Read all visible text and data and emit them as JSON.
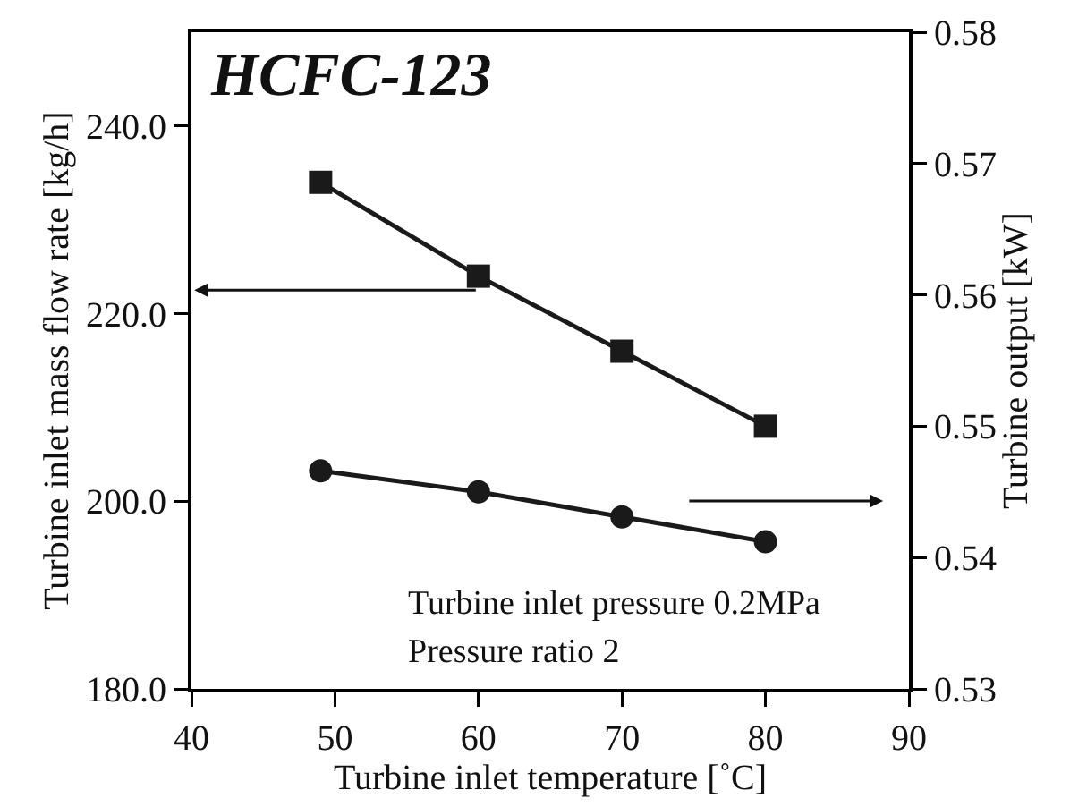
{
  "chart_data": {
    "type": "line",
    "title": "HCFC-123",
    "xlabel": "Turbine inlet temperature [˚C]",
    "ylabel": "Turbine inlet mass flow rate [kg/h]",
    "y2label": "Turbine output [kW]",
    "x": [
      49,
      60,
      70,
      80
    ],
    "series": [
      {
        "color": "#1a1a1a",
        "marker": "square",
        "values": [
          234,
          224,
          216,
          208
        ]
      },
      {
        "color": "#1a1a1a",
        "marker": "circle",
        "axis": "y2",
        "values": [
          0.5466,
          0.545,
          0.5431,
          0.5412
        ]
      }
    ],
    "xlim": [
      40,
      90
    ],
    "xticks": [
      40,
      50,
      60,
      70,
      80,
      90
    ],
    "ylim": [
      180,
      250
    ],
    "yticks": [
      {
        "value": 180,
        "label": "180.0"
      },
      {
        "value": 200,
        "label": "200.0"
      },
      {
        "value": 220,
        "label": "220.0"
      },
      {
        "value": 240,
        "label": "240.0"
      }
    ],
    "y2lim": [
      0.53,
      0.58
    ],
    "y2ticks": [
      0.53,
      0.54,
      0.55,
      0.56,
      0.57,
      0.58
    ],
    "annotations": [
      "Turbine inlet pressure 0.2MPa",
      "Pressure ratio 2"
    ],
    "grid": false,
    "line_style": "solid"
  }
}
